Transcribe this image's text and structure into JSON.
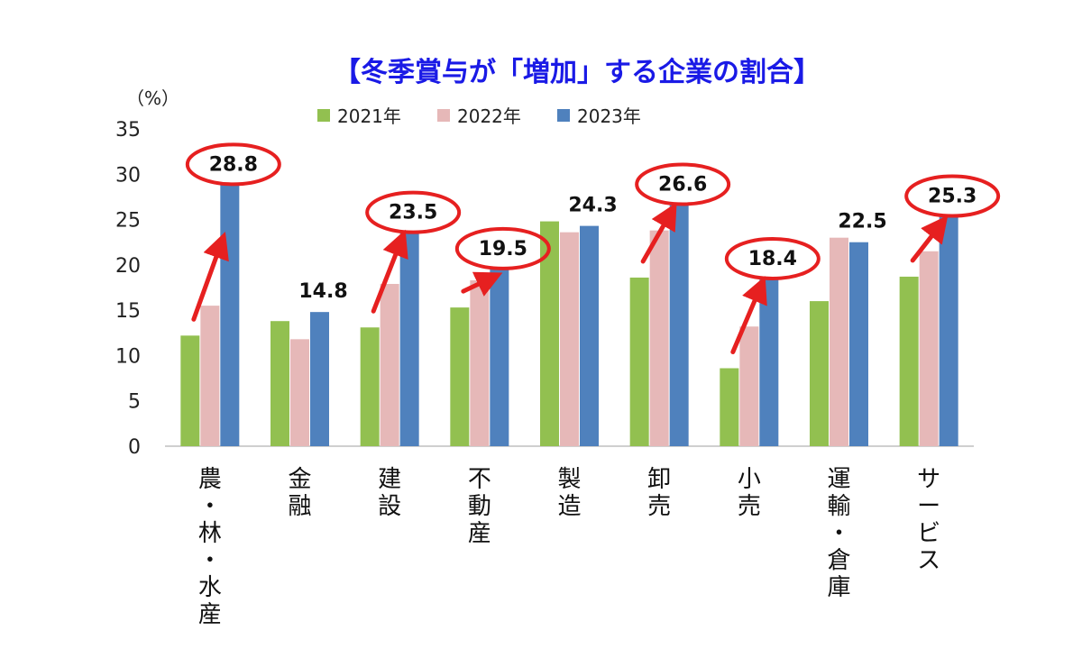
{
  "chart_data": {
    "type": "bar",
    "title": "【冬季賞与が「増加」する企業の割合】",
    "ylabel": "（%）",
    "ylim": [
      0,
      35
    ],
    "yticks": [
      0,
      5,
      10,
      15,
      20,
      25,
      30,
      35
    ],
    "grid": false,
    "legend_position": "top",
    "categories": [
      "農・林・水産",
      "金融",
      "建設",
      "不動産",
      "製造",
      "卸売",
      "小売",
      "運輸・倉庫",
      "サービス"
    ],
    "series": [
      {
        "name": "2021年",
        "color": "#92c050",
        "values": [
          12.2,
          13.8,
          13.1,
          15.3,
          24.8,
          18.6,
          8.6,
          16.0,
          18.7
        ]
      },
      {
        "name": "2022年",
        "color": "#e6b8b8",
        "values": [
          15.5,
          11.8,
          17.9,
          18.3,
          23.6,
          23.8,
          13.2,
          23.0,
          21.5
        ]
      },
      {
        "name": "2023年",
        "color": "#4f81bd",
        "values": [
          28.8,
          14.8,
          23.5,
          19.5,
          24.3,
          26.6,
          18.4,
          22.5,
          25.3
        ]
      }
    ],
    "data_labels": [
      "28.8",
      "14.8",
      "23.5",
      "19.5",
      "24.3",
      "26.6",
      "18.4",
      "22.5",
      "25.3"
    ],
    "highlighted": [
      true,
      false,
      true,
      true,
      false,
      true,
      true,
      false,
      true
    ],
    "highlight_color": "#e62020"
  }
}
